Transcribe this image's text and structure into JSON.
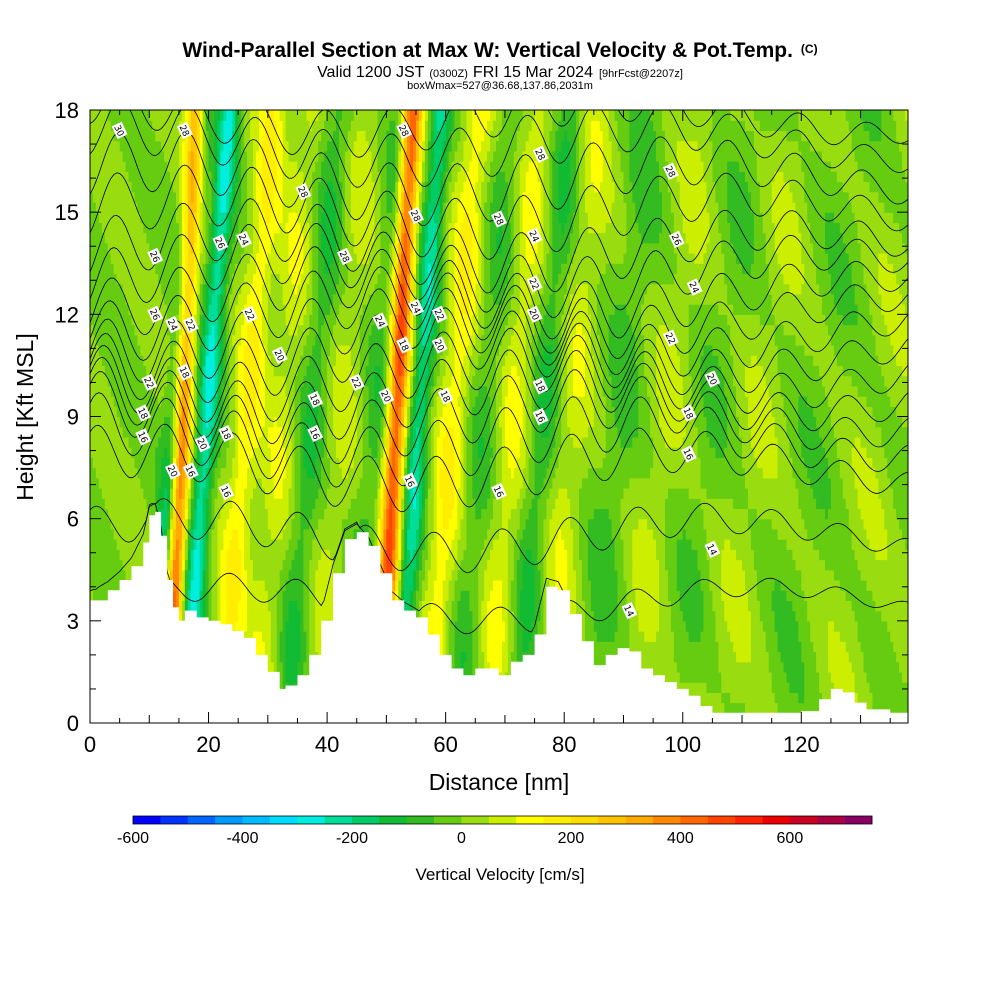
{
  "chart_data": {
    "type": "heatmap",
    "title": "Wind-Parallel Section at Max W: Vertical Velocity & Pot.Temp.",
    "title_suffix": "(C)",
    "subtitle": {
      "prefix": "Valid 1200 JST",
      "utc": "(0300Z)",
      "date": "FRI 15 Mar 2024",
      "forecast": "[9hrFcst@2207z]"
    },
    "subtitle2": "boxWmax=527@36.68,137.86,2031m",
    "xlabel": "Distance [nm]",
    "ylabel": "Height [Kft MSL]",
    "xlim": [
      0,
      138
    ],
    "ylim": [
      0,
      18
    ],
    "x_ticks": [
      0,
      20,
      40,
      60,
      80,
      100,
      120
    ],
    "y_ticks": [
      0,
      3,
      6,
      9,
      12,
      15,
      18
    ],
    "colorbar": {
      "label": "Vertical Velocity [cm/s]",
      "min": -600,
      "max": 750,
      "step": 50,
      "tick_values": [
        -600,
        -400,
        -200,
        0,
        200,
        400,
        600
      ],
      "colors": [
        "#0000ff",
        "#0033ff",
        "#0066ff",
        "#0099ff",
        "#00bbff",
        "#00ddff",
        "#00eedd",
        "#00dd99",
        "#00cc66",
        "#11bb33",
        "#33bb22",
        "#66cc11",
        "#99dd11",
        "#ccee00",
        "#ffff00",
        "#ffee00",
        "#ffdd00",
        "#ffc400",
        "#ffaa00",
        "#ff8800",
        "#ff6600",
        "#ff4400",
        "#ff2200",
        "#ee0000",
        "#cc0022",
        "#aa0044",
        "#880066"
      ]
    },
    "terrain_kft": [
      [
        0,
        3.6
      ],
      [
        3,
        3.9
      ],
      [
        5,
        4.2
      ],
      [
        7,
        4.6
      ],
      [
        9,
        5.3
      ],
      [
        10,
        6.1
      ],
      [
        11,
        6.2
      ],
      [
        12,
        5.5
      ],
      [
        13,
        4.2
      ],
      [
        14,
        3.4
      ],
      [
        15,
        3.0
      ],
      [
        16,
        3.3
      ],
      [
        18,
        3.1
      ],
      [
        20,
        3.0
      ],
      [
        22,
        2.9
      ],
      [
        24,
        2.7
      ],
      [
        26,
        2.5
      ],
      [
        28,
        2.0
      ],
      [
        30,
        1.5
      ],
      [
        32,
        1.0
      ],
      [
        33,
        1.1
      ],
      [
        35,
        1.4
      ],
      [
        37,
        2.0
      ],
      [
        39,
        3.0
      ],
      [
        41,
        4.4
      ],
      [
        43,
        5.4
      ],
      [
        45,
        5.6
      ],
      [
        47,
        5.2
      ],
      [
        49,
        4.4
      ],
      [
        51,
        3.6
      ],
      [
        53,
        3.3
      ],
      [
        55,
        3.1
      ],
      [
        57,
        2.6
      ],
      [
        59,
        2.0
      ],
      [
        61,
        1.6
      ],
      [
        63,
        1.4
      ],
      [
        65,
        1.6
      ],
      [
        67,
        1.6
      ],
      [
        69,
        1.4
      ],
      [
        71,
        1.8
      ],
      [
        73,
        2.0
      ],
      [
        75,
        2.6
      ],
      [
        77,
        4.0
      ],
      [
        79,
        3.9
      ],
      [
        81,
        3.2
      ],
      [
        83,
        2.4
      ],
      [
        85,
        1.7
      ],
      [
        87,
        2.0
      ],
      [
        89,
        2.2
      ],
      [
        91,
        2.1
      ],
      [
        93,
        1.6
      ],
      [
        95,
        1.4
      ],
      [
        97,
        1.2
      ],
      [
        99,
        1.0
      ],
      [
        101,
        0.8
      ],
      [
        103,
        0.5
      ],
      [
        105,
        0.3
      ],
      [
        107,
        0.3
      ],
      [
        110,
        0.3
      ],
      [
        115,
        0.3
      ],
      [
        120,
        0.35
      ],
      [
        123,
        0.7
      ],
      [
        125,
        1.0
      ],
      [
        127,
        0.9
      ],
      [
        129,
        0.6
      ],
      [
        131,
        0.4
      ],
      [
        135,
        0.3
      ],
      [
        138,
        0.3
      ]
    ],
    "w_bands": [
      {
        "x0": 13,
        "slope": 0.28,
        "width": 1.6,
        "amplitude": 560
      },
      {
        "x0": 11,
        "slope": 0.42,
        "width": 1.8,
        "amplitude": -300
      },
      {
        "x0": 16,
        "slope": 0.42,
        "width": 1.8,
        "amplitude": -250
      },
      {
        "x0": 22,
        "slope": 0.5,
        "width": 2.4,
        "amplitude": 150
      },
      {
        "x0": 28,
        "slope": 0.5,
        "width": 3.0,
        "amplitude": 80
      },
      {
        "x0": 33,
        "slope": 0.5,
        "width": 2.5,
        "amplitude": -100
      },
      {
        "x0": 38,
        "slope": 0.5,
        "width": 3.0,
        "amplitude": 60
      },
      {
        "x0": 44,
        "slope": 0.5,
        "width": 2.5,
        "amplitude": -80
      },
      {
        "x0": 49,
        "slope": 0.3,
        "width": 1.7,
        "amplitude": 470
      },
      {
        "x0": 52,
        "slope": 0.4,
        "width": 1.8,
        "amplitude": -220
      },
      {
        "x0": 57,
        "slope": 0.48,
        "width": 2.6,
        "amplitude": 150
      },
      {
        "x0": 62,
        "slope": 0.5,
        "width": 2.8,
        "amplitude": -70
      },
      {
        "x0": 67,
        "slope": 0.5,
        "width": 2.8,
        "amplitude": 100
      },
      {
        "x0": 72,
        "slope": 0.5,
        "width": 2.4,
        "amplitude": -100
      },
      {
        "x0": 77,
        "slope": 0.5,
        "width": 2.8,
        "amplitude": 80
      },
      {
        "x0": 84,
        "slope": 0.6,
        "width": 3.0,
        "amplitude": -60
      },
      {
        "x0": 91,
        "slope": 0.7,
        "width": 3.2,
        "amplitude": 50
      },
      {
        "x0": 98,
        "slope": 0.8,
        "width": 3.5,
        "amplitude": -40
      },
      {
        "x0": 106,
        "slope": 0.8,
        "width": 4.0,
        "amplitude": 40
      },
      {
        "x0": 116,
        "slope": 0.8,
        "width": 4.5,
        "amplitude": -30
      },
      {
        "x0": 126,
        "slope": 0.8,
        "width": 4.5,
        "amplitude": 30
      }
    ],
    "theta_contours": [
      {
        "level": 14,
        "base_kft": 3.5,
        "wave_amp": 0.4
      },
      {
        "level": 15,
        "base_kft": 5.5,
        "wave_amp": 0.6
      },
      {
        "level": 16,
        "base_kft": 7.5,
        "wave_amp": 0.8
      },
      {
        "level": 17,
        "base_kft": 8.3,
        "wave_amp": 0.9
      },
      {
        "level": 18,
        "base_kft": 9.0,
        "wave_amp": 0.9
      },
      {
        "level": 19,
        "base_kft": 9.6,
        "wave_amp": 0.9
      },
      {
        "level": 20,
        "base_kft": 10.2,
        "wave_amp": 0.9
      },
      {
        "level": 21,
        "base_kft": 10.8,
        "wave_amp": 0.9
      },
      {
        "level": 22,
        "base_kft": 11.4,
        "wave_amp": 0.9
      },
      {
        "level": 23,
        "base_kft": 12.0,
        "wave_amp": 0.9
      },
      {
        "level": 24,
        "base_kft": 12.6,
        "wave_amp": 0.9
      },
      {
        "level": 25,
        "base_kft": 13.3,
        "wave_amp": 0.9
      },
      {
        "level": 26,
        "base_kft": 14.0,
        "wave_amp": 0.9
      },
      {
        "level": 27,
        "base_kft": 15.0,
        "wave_amp": 0.9
      },
      {
        "level": 28,
        "base_kft": 16.0,
        "wave_amp": 0.9
      },
      {
        "level": 29,
        "base_kft": 17.0,
        "wave_amp": 0.8
      },
      {
        "level": 30,
        "base_kft": 17.8,
        "wave_amp": 0.7
      }
    ],
    "contour_labels": [
      {
        "text": "30",
        "x": 5,
        "y": 17.4
      },
      {
        "text": "28",
        "x": 16,
        "y": 17.4
      },
      {
        "text": "28",
        "x": 36,
        "y": 15.6
      },
      {
        "text": "28",
        "x": 53,
        "y": 17.4
      },
      {
        "text": "28",
        "x": 76,
        "y": 16.7
      },
      {
        "text": "28",
        "x": 98,
        "y": 16.2
      },
      {
        "text": "28",
        "x": 55,
        "y": 14.9
      },
      {
        "text": "28",
        "x": 69,
        "y": 14.8
      },
      {
        "text": "28",
        "x": 43,
        "y": 13.7
      },
      {
        "text": "26",
        "x": 11,
        "y": 13.7
      },
      {
        "text": "26",
        "x": 22,
        "y": 14.1
      },
      {
        "text": "24",
        "x": 26,
        "y": 14.2
      },
      {
        "text": "24",
        "x": 75,
        "y": 14.3
      },
      {
        "text": "26",
        "x": 99,
        "y": 14.2
      },
      {
        "text": "26",
        "x": 11,
        "y": 12.0
      },
      {
        "text": "24",
        "x": 14,
        "y": 11.7
      },
      {
        "text": "22",
        "x": 17,
        "y": 11.7
      },
      {
        "text": "22",
        "x": 27,
        "y": 12.0
      },
      {
        "text": "24",
        "x": 49,
        "y": 11.8
      },
      {
        "text": "24",
        "x": 55,
        "y": 12.2
      },
      {
        "text": "22",
        "x": 59,
        "y": 12.0
      },
      {
        "text": "22",
        "x": 75,
        "y": 12.9
      },
      {
        "text": "20",
        "x": 75,
        "y": 12.0
      },
      {
        "text": "24",
        "x": 102,
        "y": 12.8
      },
      {
        "text": "22",
        "x": 98,
        "y": 11.3
      },
      {
        "text": "18",
        "x": 16,
        "y": 10.3
      },
      {
        "text": "20",
        "x": 32,
        "y": 10.8
      },
      {
        "text": "18",
        "x": 53,
        "y": 11.1
      },
      {
        "text": "20",
        "x": 59,
        "y": 11.1
      },
      {
        "text": "22",
        "x": 45,
        "y": 10.0
      },
      {
        "text": "22",
        "x": 10,
        "y": 10.0
      },
      {
        "text": "20",
        "x": 50,
        "y": 9.6
      },
      {
        "text": "18",
        "x": 60,
        "y": 9.6
      },
      {
        "text": "18",
        "x": 76,
        "y": 9.9
      },
      {
        "text": "20",
        "x": 105,
        "y": 10.1
      },
      {
        "text": "18",
        "x": 38,
        "y": 9.5
      },
      {
        "text": "18",
        "x": 9,
        "y": 9.1
      },
      {
        "text": "16",
        "x": 9,
        "y": 8.4
      },
      {
        "text": "16",
        "x": 38,
        "y": 8.5
      },
      {
        "text": "18",
        "x": 23,
        "y": 8.5
      },
      {
        "text": "16",
        "x": 76,
        "y": 9.0
      },
      {
        "text": "18",
        "x": 101,
        "y": 9.1
      },
      {
        "text": "20",
        "x": 19,
        "y": 8.2
      },
      {
        "text": "16",
        "x": 101,
        "y": 7.9
      },
      {
        "text": "20",
        "x": 14,
        "y": 7.4
      },
      {
        "text": "16",
        "x": 17,
        "y": 7.4
      },
      {
        "text": "16",
        "x": 54,
        "y": 7.1
      },
      {
        "text": "16",
        "x": 23,
        "y": 6.8
      },
      {
        "text": "16",
        "x": 69,
        "y": 6.8
      },
      {
        "text": "14",
        "x": 105,
        "y": 5.1
      },
      {
        "text": "14",
        "x": 91,
        "y": 3.3
      }
    ]
  }
}
